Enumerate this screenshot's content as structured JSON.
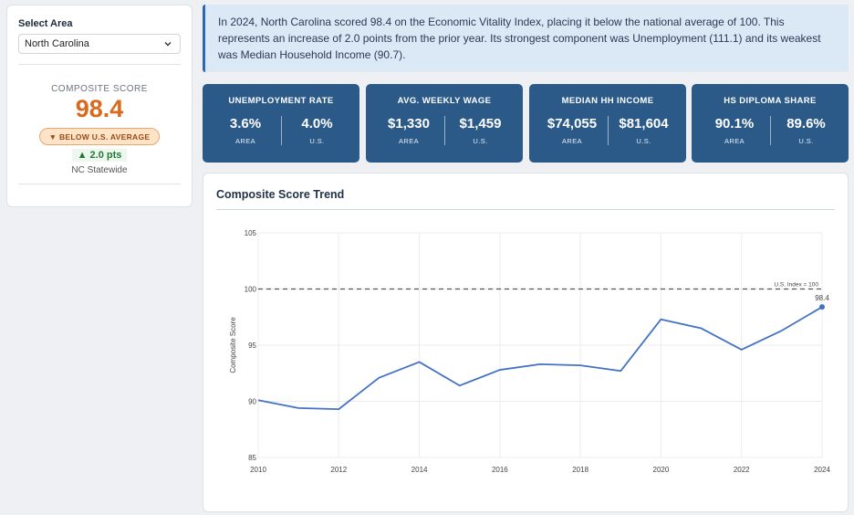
{
  "sidebar": {
    "select_label": "Select Area",
    "selected_area": "North Carolina",
    "composite_label": "COMPOSITE SCORE",
    "composite_value": "98.4",
    "badge": "▼ BELOW U.S. AVERAGE",
    "change": "▲ 2.0 pts",
    "scope": "NC Statewide"
  },
  "summary": {
    "text": "In 2024, North Carolina scored 98.4 on the Economic Vitality Index, placing it below the national average of 100. This represents an increase of 2.0 points from the prior year. Its strongest component was Unemployment (111.1) and its weakest was Median Household Income (90.7)."
  },
  "kpis": [
    {
      "title": "UNEMPLOYMENT RATE",
      "area": "3.6%",
      "us": "4.0%",
      "area_label": "AREA",
      "us_label": "U.S."
    },
    {
      "title": "AVG. WEEKLY WAGE",
      "area": "$1,330",
      "us": "$1,459",
      "area_label": "AREA",
      "us_label": "U.S."
    },
    {
      "title": "MEDIAN HH INCOME",
      "area": "$74,055",
      "us": "$81,604",
      "area_label": "AREA",
      "us_label": "U.S."
    },
    {
      "title": "HS DIPLOMA SHARE",
      "area": "90.1%",
      "us": "89.6%",
      "area_label": "AREA",
      "us_label": "U.S."
    }
  ],
  "colors": {
    "accent": "#2f67b3",
    "kpi_bg": "#2c5a88",
    "score": "#d96a1d",
    "line": "#4472c4"
  },
  "chart_data": {
    "type": "line",
    "title": "Composite Score Trend",
    "ylabel": "Composite Score",
    "xlabel": "",
    "ylim": [
      85,
      105
    ],
    "xlim": [
      2010,
      2024
    ],
    "yticks": [
      85,
      90,
      95,
      100,
      105
    ],
    "xticks": [
      2010,
      2012,
      2014,
      2016,
      2018,
      2020,
      2022,
      2024
    ],
    "grid": true,
    "x": [
      2010,
      2011,
      2012,
      2013,
      2014,
      2015,
      2016,
      2017,
      2018,
      2019,
      2020,
      2021,
      2022,
      2023,
      2024
    ],
    "values": [
      90.1,
      89.4,
      89.3,
      92.1,
      93.5,
      91.4,
      92.8,
      93.3,
      93.2,
      92.7,
      97.3,
      96.5,
      94.6,
      96.3,
      98.4
    ],
    "reference": {
      "value": 100,
      "label": "U.S. Index = 100"
    },
    "last_label": "98.4"
  }
}
